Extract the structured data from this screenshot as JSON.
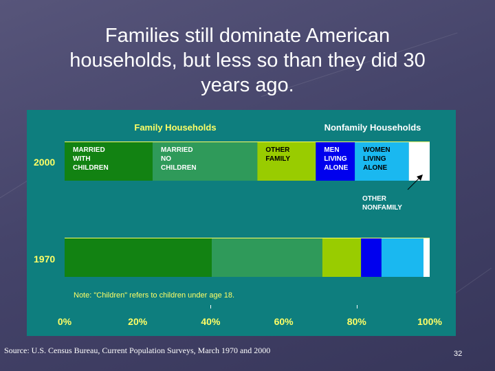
{
  "slide": {
    "title_line1": "Families still dominate American",
    "title_line2": "households, but less so than they did 30",
    "title_line3": "years ago.",
    "source": "Source: U.S. Census Bureau, Current Population Surveys, March 1970 and 2000",
    "page_number": "32"
  },
  "chart_data": {
    "type": "bar",
    "orientation": "horizontal-stacked-100",
    "group_labels": [
      "Family Households",
      "Nonfamily Households"
    ],
    "categories": [
      "2000",
      "1970"
    ],
    "series": [
      {
        "key": "married_with_children",
        "label_lines": [
          "MARRIED",
          "WITH",
          "CHILDREN"
        ],
        "color": "#128212",
        "label_color": "#ffffff",
        "values": [
          24.1,
          40.3
        ]
      },
      {
        "key": "married_no_children",
        "label_lines": [
          "MARRIED",
          "NO",
          "CHILDREN"
        ],
        "color": "#2f9a5a",
        "label_color": "#ffffff",
        "values": [
          28.7,
          30.3
        ]
      },
      {
        "key": "other_family",
        "label_lines": [
          "OTHER",
          "FAMILY"
        ],
        "color": "#99cc00",
        "label_color": "#000000",
        "values": [
          16.0,
          10.6
        ]
      },
      {
        "key": "men_living_alone",
        "label_lines": [
          "MEN",
          "LIVING",
          "ALONE"
        ],
        "color": "#0000ee",
        "label_color": "#ffffff",
        "values": [
          10.7,
          5.6
        ]
      },
      {
        "key": "women_living_alone",
        "label_lines": [
          "WOMEN",
          "LIVING",
          "ALONE"
        ],
        "color": "#1ab8f0",
        "label_color": "#000000",
        "values": [
          14.8,
          11.5
        ]
      },
      {
        "key": "other_nonfamily",
        "label_lines": [
          "OTHER",
          "NONFAMILY"
        ],
        "color": "#ffffff",
        "label_color": "#ffffff",
        "values": [
          5.7,
          1.7
        ]
      }
    ],
    "x_ticks": [
      "0%",
      "20%",
      "40%",
      "60%",
      "80%",
      "100%"
    ],
    "xlim": [
      0,
      100
    ],
    "note": "Note: \"Children\" refers to children under age 18.",
    "panel_color": "#0e7e7e",
    "header_color": "#ffff66"
  }
}
